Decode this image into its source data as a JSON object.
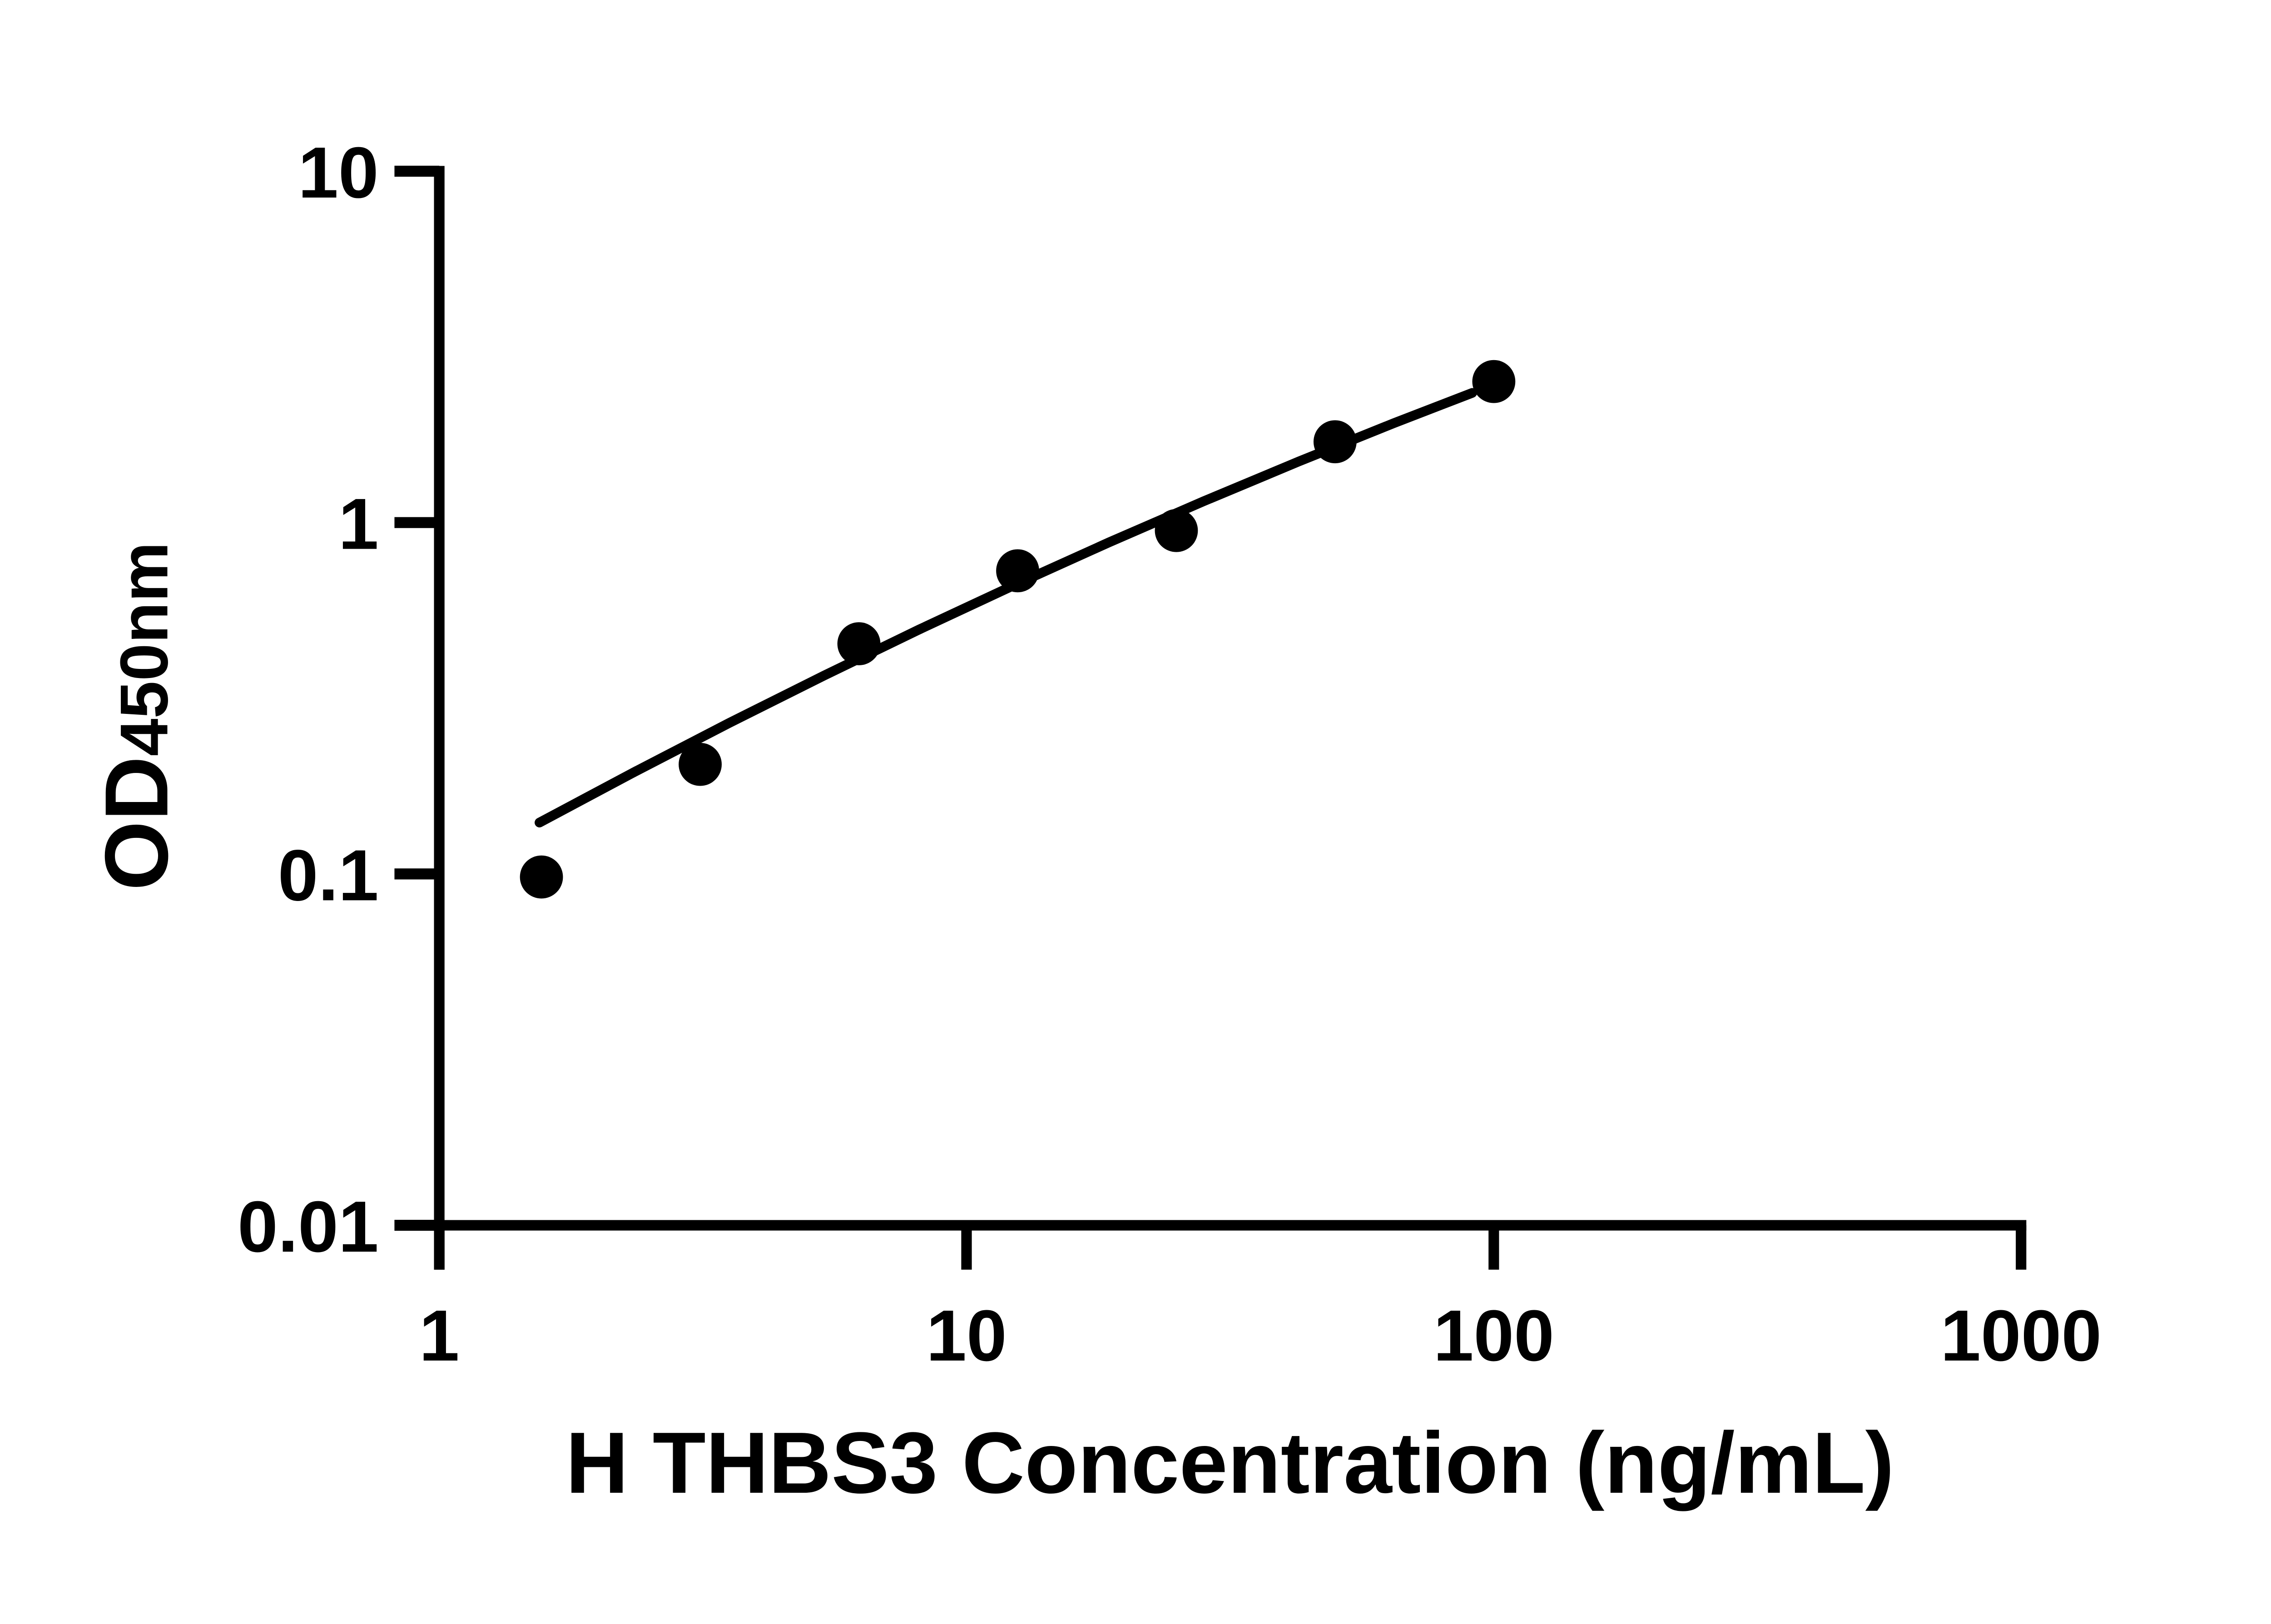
{
  "figure": {
    "background": "#ffffff",
    "ink": "#000000"
  },
  "chart_data": {
    "type": "scatter",
    "title": "",
    "xlabel": "H THBS3 Concentration (ng/mL)",
    "ylabel": "OD450nm",
    "ylabel_main": "OD",
    "ylabel_sub": "450nm",
    "x_scale": "log10",
    "y_scale": "log10",
    "xlim": [
      1,
      1000
    ],
    "ylim": [
      0.01,
      10
    ],
    "grid": false,
    "legend": "none",
    "x_ticks": [
      {
        "value": 1,
        "label": "1"
      },
      {
        "value": 10,
        "label": "10"
      },
      {
        "value": 100,
        "label": "100"
      },
      {
        "value": 1000,
        "label": "1000"
      }
    ],
    "y_ticks": [
      {
        "value": 10,
        "label": "10"
      },
      {
        "value": 1,
        "label": "1"
      },
      {
        "value": 0.1,
        "label": "0.1"
      },
      {
        "value": 0.01,
        "label": "0.01"
      }
    ],
    "series": [
      {
        "name": "standards",
        "marker": "circle",
        "color": "#000000",
        "points": [
          {
            "x": 1.5625,
            "y": 0.098
          },
          {
            "x": 3.125,
            "y": 0.205
          },
          {
            "x": 6.25,
            "y": 0.452
          },
          {
            "x": 12.5,
            "y": 0.729
          },
          {
            "x": 25,
            "y": 0.949
          },
          {
            "x": 50,
            "y": 1.698
          },
          {
            "x": 100,
            "y": 2.52
          }
        ]
      }
    ],
    "fit_curve": {
      "name": "trend-line",
      "color": "#000000",
      "points": [
        [
          1.549,
          0.14
        ],
        [
          2.344,
          0.195
        ],
        [
          3.548,
          0.269
        ],
        [
          5.37,
          0.367
        ],
        [
          8.128,
          0.496
        ],
        [
          12.3,
          0.663
        ],
        [
          18.62,
          0.878
        ],
        [
          28.18,
          1.15
        ],
        [
          42.66,
          1.492
        ],
        [
          64.57,
          1.917
        ],
        [
          91.0,
          2.339
        ]
      ]
    }
  }
}
